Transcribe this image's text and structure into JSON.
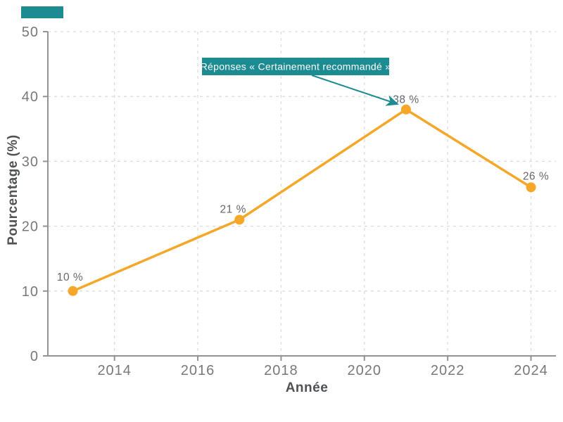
{
  "chart_data": {
    "type": "line",
    "title": "",
    "xlabel": "Année",
    "ylabel": "Pourcentage (%)",
    "x": [
      2013,
      2017,
      2021,
      2024
    ],
    "values": [
      10,
      21,
      38,
      26
    ],
    "point_labels": [
      "10 %",
      "21 %",
      "38 %",
      "26 %"
    ],
    "x_ticks": [
      2014,
      2016,
      2018,
      2020,
      2022,
      2024
    ],
    "x_tick_labels": [
      "2014",
      "2016",
      "2018",
      "2020",
      "2022",
      "2024"
    ],
    "y_ticks": [
      0,
      10,
      20,
      30,
      40,
      50
    ],
    "y_tick_labels": [
      "0",
      "10",
      "20",
      "30",
      "40",
      "50"
    ],
    "xlim": [
      2012.4,
      2024.6
    ],
    "ylim": [
      0,
      50
    ],
    "grid": true,
    "legend": "none",
    "annotation": {
      "text": "Réponses « Certainement recommandé »",
      "target_x": 2021,
      "target_y": 38
    }
  },
  "colors": {
    "line": "#F5A729",
    "marker": "#F5A729",
    "annotation_bg": "#1C8B92",
    "annotation_text": "#FFFFFF",
    "grid": "#DCDCDC",
    "axis": "#919396",
    "tick_label": "#77787B",
    "axis_title": "#4F5154",
    "point_label": "#66676A",
    "accent_chip": "#1C8B92"
  }
}
